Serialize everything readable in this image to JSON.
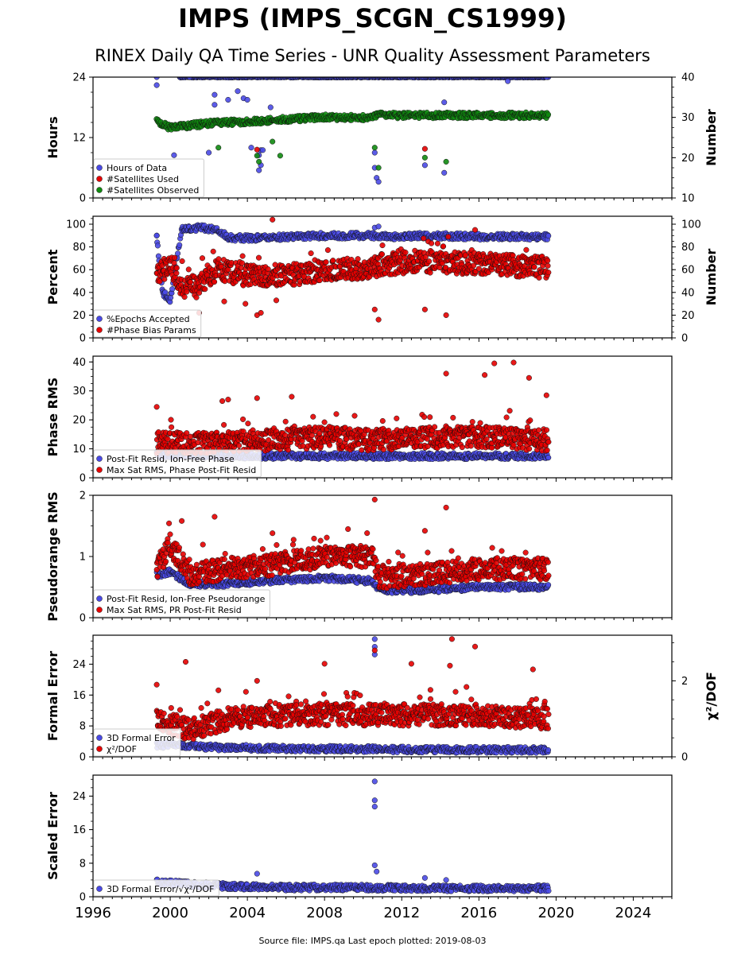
{
  "title": "IMPS (IMPS_SCGN_CS1999)",
  "subtitle": "RINEX Daily QA Time Series - UNR Quality Assessment Parameters",
  "footer": "Source file: IMPS.qa Last epoch plotted: 2019-08-03",
  "colors": {
    "blue": "#4a4ae6",
    "red": "#e60000",
    "green": "#0f8a0f"
  },
  "chart_data": [
    {
      "type": "scatter",
      "ylabel": "Hours",
      "y2label": "Number",
      "ylim": [
        0,
        24
      ],
      "yticks": [
        "0",
        "12",
        "24"
      ],
      "y2lim": [
        10,
        40
      ],
      "y2ticks": [
        "10",
        "20",
        "30",
        "40"
      ],
      "xlim": [
        1996,
        2026
      ],
      "series": [
        {
          "name": "Hours of Data",
          "color": "blue",
          "axis": "left",
          "points": [
            [
              1999.3,
              24.0
            ],
            [
              1999.3,
              22.4
            ],
            [
              2000.2,
              8.5
            ],
            [
              2001.0,
              24.0
            ],
            [
              2002.0,
              9.0
            ],
            [
              2002.3,
              18.5
            ],
            [
              2002.3,
              20.5
            ],
            [
              2003.0,
              19.5
            ],
            [
              2003.5,
              21.2
            ],
            [
              2003.8,
              19.8
            ],
            [
              2004.0,
              19.5
            ],
            [
              2004.2,
              10.0
            ],
            [
              2004.6,
              8.5
            ],
            [
              2004.6,
              5.5
            ],
            [
              2004.7,
              9.5
            ],
            [
              2004.7,
              6.5
            ],
            [
              2004.8,
              9.5
            ],
            [
              2005.2,
              18.0
            ],
            [
              2010.6,
              9.0
            ],
            [
              2010.6,
              6.0
            ],
            [
              2010.7,
              4.0
            ],
            [
              2010.8,
              3.2
            ],
            [
              2013.2,
              6.5
            ],
            [
              2014.2,
              19.0
            ],
            [
              2014.2,
              5.0
            ],
            [
              2017.5,
              23.2
            ],
            [
              2019.5,
              24.0
            ]
          ],
          "band": {
            "from": 2000.5,
            "to": 2019.6,
            "y": 24.0
          }
        },
        {
          "name": "#Satellites Used",
          "color": "red",
          "axis": "right",
          "points": [
            [
              2004.5,
              22.0
            ],
            [
              2013.2,
              22.2
            ]
          ]
        },
        {
          "name": "#Satellites Observed",
          "color": "green",
          "axis": "right",
          "points": [
            [
              2002.5,
              22.5
            ],
            [
              2004.5,
              20.5
            ],
            [
              2004.6,
              19.0
            ],
            [
              2005.3,
              24.0
            ],
            [
              2005.7,
              20.5
            ],
            [
              2010.6,
              22.5
            ],
            [
              2010.8,
              17.5
            ],
            [
              2013.2,
              20.0
            ],
            [
              2014.3,
              19.0
            ]
          ],
          "trend": [
            [
              1999.3,
              29.0
            ],
            [
              2000.0,
              27.5
            ],
            [
              2002.0,
              28.5
            ],
            [
              2004.0,
              29.0
            ],
            [
              2006.0,
              29.5
            ],
            [
              2008.0,
              30.0
            ],
            [
              2010.5,
              30.0
            ],
            [
              2010.8,
              30.5
            ],
            [
              2013.0,
              30.5
            ],
            [
              2016.0,
              30.5
            ],
            [
              2019.6,
              30.5
            ]
          ]
        }
      ],
      "legend": {
        "position": "lower-left"
      }
    },
    {
      "type": "scatter",
      "ylabel": "Percent",
      "y2label": "Number",
      "ylim": [
        0,
        107
      ],
      "yticks": [
        "0",
        "20",
        "40",
        "60",
        "80",
        "100"
      ],
      "y2lim": [
        0,
        107
      ],
      "y2ticks": [
        "0",
        "20",
        "40",
        "60",
        "80",
        "100"
      ],
      "xlim": [
        1996,
        2026
      ],
      "series": [
        {
          "name": "%Epochs Accepted",
          "color": "blue",
          "axis": "left",
          "points": [
            [
              1999.3,
              90.0
            ],
            [
              2010.6,
              97.0
            ],
            [
              2010.8,
              98.0
            ]
          ],
          "trend": [
            [
              1999.3,
              88.0
            ],
            [
              1999.6,
              40.0
            ],
            [
              2000.0,
              33.0
            ],
            [
              2000.6,
              95.0
            ],
            [
              2001.5,
              97.0
            ],
            [
              2002.5,
              95.0
            ],
            [
              2003.0,
              88.0
            ],
            [
              2005.0,
              88.0
            ],
            [
              2008.0,
              90.0
            ],
            [
              2010.5,
              90.0
            ],
            [
              2011.0,
              89.0
            ],
            [
              2013.0,
              90.0
            ],
            [
              2016.0,
              89.0
            ],
            [
              2019.6,
              89.0
            ]
          ]
        },
        {
          "name": "#Phase Bias Params",
          "color": "red",
          "axis": "left",
          "points": [
            [
              2001.5,
              22.0
            ],
            [
              2002.8,
              32.0
            ],
            [
              2003.9,
              30.0
            ],
            [
              2004.5,
              20.0
            ],
            [
              2004.7,
              22.0
            ],
            [
              2005.3,
              104.0
            ],
            [
              2005.5,
              33.0
            ],
            [
              2010.6,
              25.0
            ],
            [
              2010.8,
              16.0
            ],
            [
              2013.2,
              25.0
            ],
            [
              2014.3,
              20.0
            ],
            [
              2015.8,
              95.0
            ]
          ],
          "trend": [
            [
              1999.3,
              55.0
            ],
            [
              2000.0,
              65.0
            ],
            [
              2000.6,
              45.0
            ],
            [
              2001.5,
              45.0
            ],
            [
              2002.5,
              60.0
            ],
            [
              2004.0,
              55.0
            ],
            [
              2006.0,
              55.0
            ],
            [
              2008.0,
              60.0
            ],
            [
              2010.5,
              62.0
            ],
            [
              2011.0,
              65.0
            ],
            [
              2013.0,
              67.0
            ],
            [
              2016.0,
              65.0
            ],
            [
              2019.6,
              62.0
            ]
          ]
        }
      ],
      "legend": {
        "position": "lower-left"
      }
    },
    {
      "type": "scatter",
      "ylabel": "Phase RMS",
      "ylim": [
        0,
        42
      ],
      "yticks": [
        "0",
        "10",
        "20",
        "30",
        "40"
      ],
      "xlim": [
        1996,
        2026
      ],
      "series": [
        {
          "name": "Post-Fit Resid, Ion-Free Phase",
          "color": "blue",
          "axis": "left",
          "trend": [
            [
              1999.3,
              8.0
            ],
            [
              2005.0,
              7.5
            ],
            [
              2010.0,
              7.5
            ],
            [
              2015.0,
              7.5
            ],
            [
              2019.6,
              7.5
            ]
          ]
        },
        {
          "name": "Max Sat RMS, Phase Post-Fit Resid",
          "color": "red",
          "axis": "left",
          "points": [
            [
              1999.3,
              24.5
            ],
            [
              2002.7,
              26.5
            ],
            [
              2003.0,
              27.0
            ],
            [
              2004.5,
              27.5
            ],
            [
              2006.3,
              28.0
            ],
            [
              2014.3,
              36.0
            ],
            [
              2016.3,
              35.5
            ],
            [
              2016.8,
              39.5
            ],
            [
              2017.8,
              39.8
            ],
            [
              2018.6,
              34.5
            ],
            [
              2019.5,
              28.5
            ]
          ],
          "trend": [
            [
              1999.3,
              12.0
            ],
            [
              2002.0,
              12.0
            ],
            [
              2005.0,
              13.0
            ],
            [
              2008.0,
              14.0
            ],
            [
              2010.5,
              13.0
            ],
            [
              2013.0,
              14.0
            ],
            [
              2016.0,
              14.0
            ],
            [
              2019.6,
              13.0
            ]
          ]
        }
      ],
      "legend": {
        "position": "lower-left"
      }
    },
    {
      "type": "scatter",
      "ylabel": "Pseudorange RMS",
      "ylim": [
        0,
        2
      ],
      "yticks": [
        "0",
        "1",
        "2"
      ],
      "xlim": [
        1996,
        2026
      ],
      "series": [
        {
          "name": "Post-Fit Resid, Ion-Free Pseudorange",
          "color": "blue",
          "axis": "left",
          "trend": [
            [
              1999.3,
              0.7
            ],
            [
              2000.0,
              0.75
            ],
            [
              2001.0,
              0.55
            ],
            [
              2003.0,
              0.55
            ],
            [
              2005.0,
              0.6
            ],
            [
              2008.0,
              0.65
            ],
            [
              2010.5,
              0.6
            ],
            [
              2010.8,
              0.45
            ],
            [
              2013.0,
              0.45
            ],
            [
              2016.0,
              0.5
            ],
            [
              2019.6,
              0.5
            ]
          ]
        },
        {
          "name": "Max Sat RMS, PR Post-Fit Resid",
          "color": "red",
          "axis": "left",
          "points": [
            [
              2000.6,
              1.58
            ],
            [
              2002.3,
              1.65
            ],
            [
              2005.3,
              1.38
            ],
            [
              2010.6,
              1.93
            ],
            [
              2013.2,
              1.42
            ],
            [
              2014.3,
              1.8
            ]
          ],
          "trend": [
            [
              1999.3,
              0.8
            ],
            [
              2000.0,
              1.2
            ],
            [
              2001.0,
              0.7
            ],
            [
              2003.0,
              0.8
            ],
            [
              2005.0,
              0.85
            ],
            [
              2008.0,
              1.0
            ],
            [
              2010.5,
              1.0
            ],
            [
              2010.8,
              0.65
            ],
            [
              2013.0,
              0.7
            ],
            [
              2016.0,
              0.8
            ],
            [
              2019.6,
              0.8
            ]
          ]
        }
      ],
      "legend": {
        "position": "lower-left"
      }
    },
    {
      "type": "scatter",
      "ylabel": "Formal Error",
      "y2label": "χ²/DOF",
      "ylim": [
        0,
        31.5
      ],
      "yticks": [
        "0",
        "8",
        "16",
        "24"
      ],
      "y2lim": [
        0,
        3.2
      ],
      "y2ticks": [
        "0",
        "2"
      ],
      "xlim": [
        1996,
        2026
      ],
      "series": [
        {
          "name": "3D Formal Error",
          "color": "blue",
          "axis": "left",
          "points": [
            [
              2010.6,
              30.5
            ],
            [
              2010.6,
              28.5
            ],
            [
              2010.6,
              26.5
            ]
          ],
          "trend": [
            [
              1999.3,
              3.0
            ],
            [
              2001.0,
              3.0
            ],
            [
              2002.0,
              2.5
            ],
            [
              2005.0,
              2.2
            ],
            [
              2010.0,
              2.0
            ],
            [
              2015.0,
              1.8
            ],
            [
              2019.6,
              1.8
            ]
          ]
        },
        {
          "name": "χ²/DOF",
          "color": "red",
          "axis": "right",
          "points": [
            [
              1999.3,
              1.9
            ],
            [
              2000.8,
              2.5
            ],
            [
              2002.5,
              1.75
            ],
            [
              2004.5,
              2.0
            ],
            [
              2008.0,
              2.45
            ],
            [
              2010.6,
              2.8
            ],
            [
              2012.5,
              2.45
            ],
            [
              2014.5,
              2.4
            ],
            [
              2014.6,
              3.1
            ],
            [
              2015.8,
              2.9
            ],
            [
              2018.8,
              2.3
            ]
          ],
          "trend": [
            [
              1999.3,
              1.0
            ],
            [
              2001.0,
              0.7
            ],
            [
              2003.0,
              1.0
            ],
            [
              2006.0,
              1.1
            ],
            [
              2010.0,
              1.1
            ],
            [
              2013.0,
              1.1
            ],
            [
              2016.0,
              1.1
            ],
            [
              2019.6,
              1.0
            ]
          ]
        }
      ],
      "legend": {
        "position": "lower-left"
      }
    },
    {
      "type": "scatter",
      "ylabel": "Scaled Error",
      "ylim": [
        0,
        29
      ],
      "yticks": [
        "0",
        "8",
        "16",
        "24"
      ],
      "xlim": [
        1996,
        2026
      ],
      "xticks": [
        "1996",
        "2000",
        "2004",
        "2008",
        "2012",
        "2016",
        "2020",
        "2024"
      ],
      "series": [
        {
          "name": "3D Formal Error/√χ²/DOF",
          "color": "blue",
          "axis": "left",
          "points": [
            [
              2004.5,
              5.5
            ],
            [
              2010.6,
              27.5
            ],
            [
              2010.6,
              23.0
            ],
            [
              2010.6,
              21.5
            ],
            [
              2010.6,
              7.5
            ],
            [
              2010.7,
              6.0
            ],
            [
              2013.2,
              4.5
            ],
            [
              2014.3,
              4.0
            ]
          ],
          "trend": [
            [
              1999.3,
              3.5
            ],
            [
              2001.0,
              3.0
            ],
            [
              2003.0,
              2.5
            ],
            [
              2006.0,
              2.2
            ],
            [
              2010.0,
              2.2
            ],
            [
              2014.0,
              2.0
            ],
            [
              2019.6,
              2.0
            ]
          ]
        }
      ],
      "legend": {
        "position": "lower-left"
      }
    }
  ]
}
